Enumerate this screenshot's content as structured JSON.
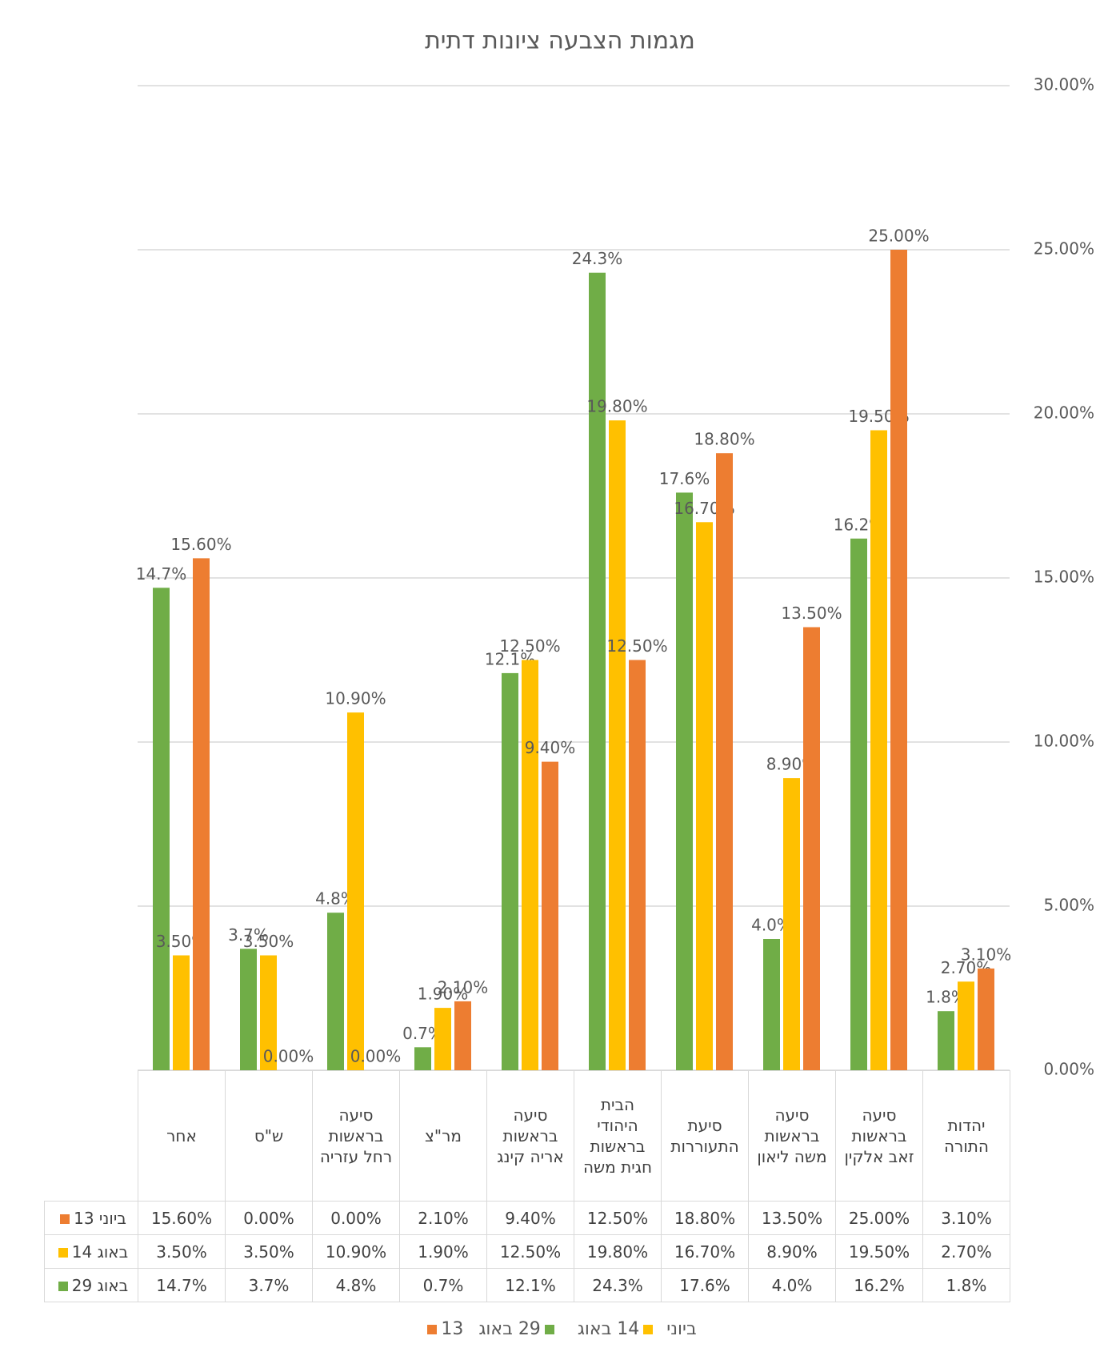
{
  "chart_data": {
    "type": "bar",
    "title": "מגמות הצבעה ציונות דתית",
    "categories": [
      "אחר",
      "ש\"ס",
      "סיעה בראשות רחל עזריה",
      "מר\"צ",
      "סיעה בראשות אריה קינג",
      "הבית היהודי בראשות חגית משה",
      "סיעת התעוררות",
      "סיעה בראשות משה ליאון",
      "סיעה בראשות זאב אלקין",
      "יהדות התורה"
    ],
    "series": [
      {
        "name": "29 באוג",
        "color": "#70ad47",
        "values": [
          14.7,
          3.7,
          4.8,
          0.7,
          12.1,
          24.3,
          17.6,
          4.0,
          16.2,
          1.8
        ],
        "value_labels": [
          "14.7%",
          "3.7%",
          "4.8%",
          "0.7%",
          "12.1%",
          "24.3%",
          "17.6%",
          "4.0%",
          "16.2%",
          "1.8%"
        ]
      },
      {
        "name": "14 באוג",
        "color": "#ffc000",
        "values": [
          3.5,
          3.5,
          10.9,
          1.9,
          12.5,
          19.8,
          16.7,
          8.9,
          19.5,
          2.7
        ],
        "value_labels": [
          "3.50%",
          "3.50%",
          "10.90%",
          "1.90%",
          "12.50%",
          "19.80%",
          "16.70%",
          "8.90%",
          "19.50%",
          "2.70%"
        ]
      },
      {
        "name": "13 ביוני",
        "color": "#ed7d31",
        "values": [
          15.6,
          0,
          0,
          2.1,
          9.4,
          12.5,
          18.8,
          13.5,
          25,
          3.1
        ],
        "value_labels": [
          "15.60%",
          "0.00%",
          "0.00%",
          "2.10%",
          "9.40%",
          "12.50%",
          "18.80%",
          "13.50%",
          "25.00%",
          "3.10%"
        ]
      }
    ],
    "ylim": [
      0,
      30
    ],
    "yticks": [
      {
        "value": 0,
        "label": "0.00%"
      },
      {
        "value": 5,
        "label": "5.00%"
      },
      {
        "value": 10,
        "label": "10.00%"
      },
      {
        "value": 15,
        "label": "15.00%"
      },
      {
        "value": 20,
        "label": "20.00%"
      },
      {
        "value": 25,
        "label": "25.00%"
      },
      {
        "value": 30,
        "label": "30.00%"
      }
    ],
    "grid": true
  }
}
